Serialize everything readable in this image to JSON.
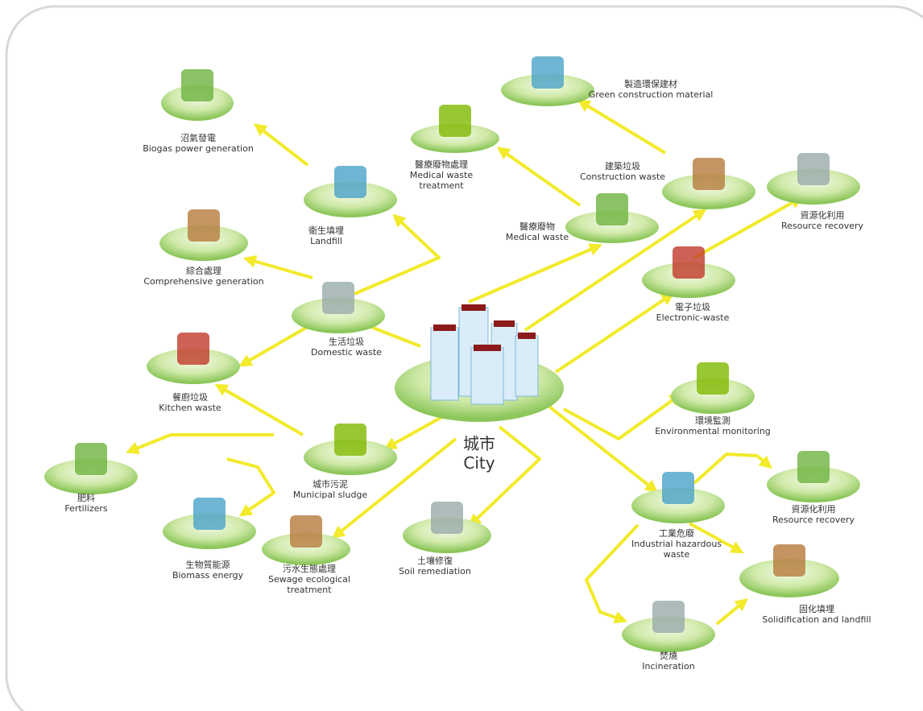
{
  "nodes": [
    {
      "zh": "沼氣發電",
      "en": [
        "Biogas power generation"
      ]
    },
    {
      "zh": "衛生填埋",
      "en": [
        "Landfill"
      ]
    },
    {
      "zh": "綜合處理",
      "en": [
        "Comprehensive generation"
      ]
    },
    {
      "zh": "生活垃圾",
      "en": [
        "Domestic waste"
      ]
    },
    {
      "zh": "餐廚垃圾",
      "en": [
        "Kitchen waste"
      ]
    },
    {
      "zh": "城市污泥",
      "en": [
        "Municipal sludge"
      ]
    },
    {
      "zh": "肥料",
      "en": [
        "Fertilizers"
      ]
    },
    {
      "zh": "生物質能源",
      "en": [
        "Biomass energy"
      ]
    },
    {
      "zh": "污水生態處理",
      "en": [
        "Sewage ecological",
        "treatment"
      ]
    },
    {
      "zh": "土壤修復",
      "en": [
        "Soil remediation"
      ]
    },
    {
      "zh": "城市",
      "en": [
        "City"
      ]
    },
    {
      "zh": "醫療廢物處理",
      "en": [
        "Medical waste",
        "treatment"
      ]
    },
    {
      "zh": "醫療廢物",
      "en": [
        "Medical waste"
      ]
    },
    {
      "zh": "製造環保建材",
      "en": [
        "Green construction material"
      ]
    },
    {
      "zh": "建築垃圾",
      "en": [
        "Construction waste"
      ]
    },
    {
      "zh": "資源化利用",
      "en": [
        "Resource recovery"
      ]
    },
    {
      "zh": "電子垃圾",
      "en": [
        "Electronic-waste"
      ]
    },
    {
      "zh": "環境監測",
      "en": [
        "Environmental monitoring"
      ]
    },
    {
      "zh": "資源化利用",
      "en": [
        "Resource recovery"
      ]
    },
    {
      "zh": "工業危廢",
      "en": [
        "Industrial hazardous",
        "waste"
      ]
    },
    {
      "zh": "固化填埋",
      "en": [
        "Solidification and landfill"
      ]
    },
    {
      "zh": "焚燒",
      "en": [
        "Incineration"
      ]
    }
  ]
}
